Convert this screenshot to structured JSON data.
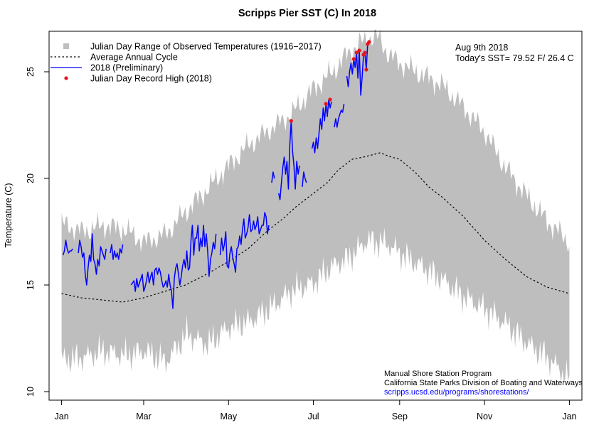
{
  "chart_data": {
    "type": "line",
    "title": "Scripps Pier SST (C) In 2018",
    "ylabel": "Temperature (C)",
    "xlabel": "",
    "xlim": [
      -8,
      375
    ],
    "ylim": [
      9.6,
      26.9
    ],
    "x_ticks": [
      {
        "label": "Jan",
        "day": 1
      },
      {
        "label": "Mar",
        "day": 60
      },
      {
        "label": "May",
        "day": 121
      },
      {
        "label": "Jul",
        "day": 182
      },
      {
        "label": "Sep",
        "day": 244
      },
      {
        "label": "Nov",
        "day": 305
      },
      {
        "label": "Jan",
        "day": 366
      }
    ],
    "y_ticks": [
      10,
      15,
      20,
      25
    ],
    "legend": {
      "position": "top-left",
      "entries": [
        {
          "label": "Julian Day Range of Observed Temperatures (1916−2017)",
          "style": "square",
          "color": "#bebebe"
        },
        {
          "label": "Average Annual Cycle",
          "style": "dotted",
          "color": "#000000"
        },
        {
          "label": "2018 (Preliminary)",
          "style": "line",
          "color": "#0000ff"
        },
        {
          "label": "Julian Day Record High (2018)",
          "style": "dot",
          "color": "#e8151b"
        }
      ]
    },
    "annotations": {
      "date": "Aug 9th 2018",
      "today_sst": "Today's SST= 79.52 F/ 26.4 C"
    },
    "credits": {
      "line1": "Manual Shore Station Program",
      "line2": "California State Parks Division of Boating and Waterways",
      "link": "scripps.ucsd.edu/programs/shorestations/"
    },
    "range_band": {
      "color": "#bebebe",
      "x": [
        1,
        16,
        31,
        46,
        61,
        76,
        91,
        106,
        121,
        136,
        151,
        166,
        182,
        196,
        206,
        213,
        221,
        229,
        236,
        244,
        259,
        274,
        289,
        305,
        320,
        335,
        350,
        366
      ],
      "max": [
        17.9,
        17.5,
        17.8,
        17.6,
        17.0,
        17.4,
        18.5,
        19.5,
        20.6,
        21.6,
        22.3,
        23.0,
        24.2,
        25.0,
        25.8,
        26.2,
        26.6,
        26.6,
        25.8,
        25.4,
        24.9,
        24.4,
        23.4,
        22.2,
        20.5,
        19.2,
        18.0,
        17.0
      ],
      "min": [
        11.5,
        11.6,
        11.9,
        11.7,
        11.9,
        11.4,
        12.7,
        12.2,
        13.0,
        13.3,
        13.9,
        14.7,
        15.1,
        15.9,
        16.2,
        16.6,
        17.1,
        17.0,
        16.9,
        16.5,
        15.9,
        15.3,
        14.5,
        13.9,
        13.2,
        12.3,
        11.6,
        10.6
      ]
    },
    "series": [
      {
        "name": "Average Annual Cycle",
        "style": "dotted",
        "color": "#000000",
        "x": [
          1,
          15,
          30,
          45,
          60,
          75,
          90,
          105,
          121,
          135,
          150,
          160,
          170,
          182,
          192,
          200,
          210,
          218,
          230,
          238,
          244,
          255,
          265,
          275,
          290,
          305,
          320,
          335,
          350,
          366
        ],
        "y": [
          14.6,
          14.4,
          14.3,
          14.2,
          14.4,
          14.7,
          15.0,
          15.5,
          16.1,
          16.7,
          17.6,
          18.1,
          18.7,
          19.3,
          19.8,
          20.4,
          20.9,
          21.0,
          21.2,
          21.0,
          20.9,
          20.3,
          19.6,
          19.1,
          18.2,
          17.1,
          16.2,
          15.4,
          14.9,
          14.6
        ]
      },
      {
        "name": "2018 (Preliminary)",
        "style": "line",
        "color": "#0000ff",
        "segments": [
          {
            "x": [
              2,
              3,
              4,
              5,
              6,
              7,
              8,
              9
            ],
            "y": [
              16.4,
              16.6,
              17.1,
              16.7,
              16.5,
              16.6,
              16.6,
              16.7
            ]
          },
          {
            "x": [
              13,
              14,
              15,
              16,
              17,
              18,
              19,
              20,
              21,
              22,
              23,
              24,
              25,
              26,
              27,
              28,
              29,
              30,
              31,
              32,
              33
            ],
            "y": [
              16.5,
              17.1,
              16.8,
              16.3,
              16.5,
              15.5,
              15.0,
              15.8,
              16.4,
              16.1,
              17.4,
              16.2,
              16.0,
              15.5,
              16.2,
              15.9,
              16.8,
              16.6,
              16.4,
              16.2,
              16.7
            ]
          },
          {
            "x": [
              36,
              37,
              38,
              39,
              40,
              41,
              42,
              43,
              44,
              45
            ],
            "y": [
              16.5,
              16.9,
              16.2,
              16.6,
              16.3,
              16.5,
              16.2,
              16.7,
              16.5,
              16.9
            ]
          },
          {
            "x": [
              51,
              52,
              53,
              54,
              55,
              56,
              57,
              58,
              59,
              60,
              61,
              62,
              63,
              64,
              65,
              66,
              67,
              68,
              69,
              70,
              71,
              72,
              73,
              74,
              75,
              76,
              77,
              78,
              79,
              80,
              81,
              82,
              83,
              84,
              85,
              86,
              87,
              88,
              89,
              90,
              91,
              92,
              93,
              94,
              95,
              96,
              97,
              98,
              99,
              100,
              101,
              102,
              103,
              104,
              105,
              106,
              107,
              108,
              109,
              110,
              111,
              112
            ],
            "y": [
              15.0,
              15.1,
              15.2,
              14.7,
              15.3,
              14.9,
              15.1,
              15.3,
              15.5,
              14.7,
              14.9,
              15.2,
              15.6,
              15.1,
              15.4,
              15.6,
              15.0,
              15.7,
              15.8,
              15.5,
              15.8,
              15.6,
              15.2,
              14.9,
              15.0,
              15.2,
              14.9,
              15.5,
              15.0,
              14.7,
              13.9,
              15.3,
              15.8,
              16.0,
              15.5,
              15.0,
              15.4,
              15.9,
              16.2,
              15.8,
              16.6,
              15.7,
              15.8,
              17.1,
              17.8,
              16.4,
              17.2,
              17.2,
              17.8,
              16.6,
              17.2,
              16.8,
              17.8,
              16.8,
              17.4,
              16.6,
              15.4,
              16.2,
              16.5,
              17.0,
              16.7,
              17.4
            ]
          },
          {
            "x": [
              115,
              116,
              117,
              118,
              119,
              120,
              121,
              122,
              123,
              124,
              125,
              126,
              127,
              128,
              129,
              130,
              131,
              132,
              133,
              134,
              135,
              136,
              137,
              138,
              139,
              140,
              141,
              142,
              143,
              144,
              145,
              146,
              147,
              148,
              149,
              150
            ],
            "y": [
              16.4,
              17.2,
              16.6,
              16.9,
              17.5,
              15.9,
              15.8,
              16.5,
              16.8,
              16.3,
              16.0,
              15.6,
              16.7,
              16.8,
              17.3,
              16.9,
              17.6,
              18.1,
              17.2,
              17.4,
              17.7,
              18.3,
              17.5,
              17.6,
              18.0,
              17.6,
              17.8,
              18.2,
              17.4,
              17.6,
              17.8,
              17.8,
              18.4,
              18.2,
              17.4,
              17.8
            ]
          },
          {
            "x": [
              152,
              153,
              154
            ],
            "y": [
              19.8,
              20.3,
              20.0
            ]
          },
          {
            "x": [
              157,
              158,
              159,
              160,
              161,
              162,
              163,
              164,
              165,
              166,
              167,
              168,
              169,
              170,
              171,
              172
            ],
            "y": [
              19.3,
              19.0,
              19.8,
              20.5,
              21.0,
              20.2,
              20.8,
              19.5,
              21.5,
              22.7,
              21.3,
              20.6,
              19.5,
              20.8,
              20.2,
              20.6
            ]
          },
          {
            "x": [
              174,
              175,
              176,
              177
            ],
            "y": [
              19.6,
              20.3,
              20.0,
              19.8
            ]
          },
          {
            "x": [
              181,
              182,
              183,
              184,
              185,
              186,
              187,
              188,
              189,
              190,
              191,
              192,
              193,
              194,
              195
            ],
            "y": [
              21.4,
              21.7,
              21.2,
              21.9,
              21.4,
              22.1,
              22.8,
              22.3,
              23.3,
              22.7,
              23.5,
              22.9,
              23.7,
              23.3,
              23.6
            ]
          },
          {
            "x": [
              197,
              198,
              199,
              200,
              201,
              202,
              203,
              204
            ],
            "y": [
              22.4,
              22.8,
              22.4,
              22.8,
              23.0,
              23.2,
              23.1,
              23.5
            ]
          },
          {
            "x": [
              206,
              207,
              208,
              209,
              210,
              211,
              212,
              213,
              214,
              215,
              216,
              217,
              218,
              219,
              220,
              221,
              222
            ],
            "y": [
              24.8,
              24.3,
              25.0,
              25.4,
              24.9,
              25.6,
              25.2,
              25.9,
              24.7,
              26.0,
              23.9,
              24.7,
              25.8,
              25.9,
              25.1,
              26.3,
              26.4
            ]
          }
        ]
      }
    ],
    "record_highs": {
      "name": "Julian Day Record High (2018)",
      "color": "#e8151b",
      "x": [
        166,
        191,
        194,
        211,
        213,
        215,
        218,
        219,
        220,
        221,
        222
      ],
      "y": [
        22.7,
        23.5,
        23.7,
        25.6,
        25.9,
        26.0,
        25.8,
        25.9,
        25.1,
        26.3,
        26.4
      ]
    }
  }
}
